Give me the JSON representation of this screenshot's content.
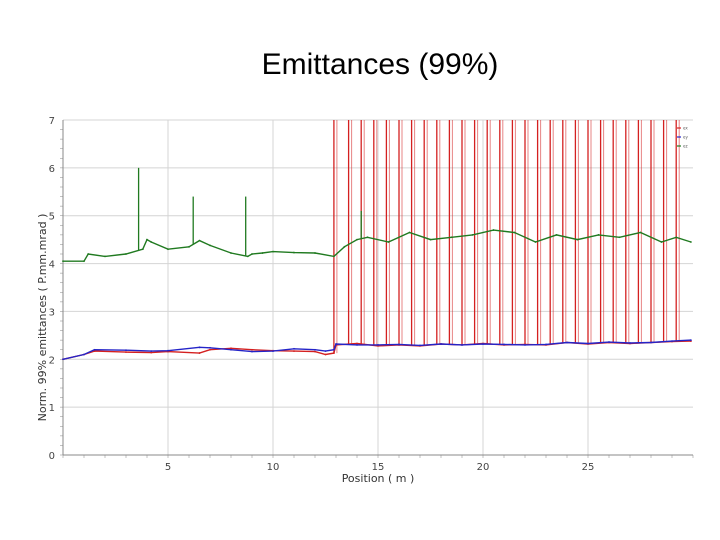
{
  "slide": {
    "title": "Emittances (99%)"
  },
  "chart_data": {
    "type": "line",
    "title": "Emittances (99%)",
    "xlabel": "Position ( m )",
    "ylabel": "Norm. 99% emittances ( P.mm.mrad )",
    "xlim": [
      0,
      30
    ],
    "ylim": [
      0,
      7
    ],
    "xticks": [
      5,
      10,
      15,
      20,
      25
    ],
    "yticks": [
      0,
      1,
      2,
      3,
      4,
      5,
      6,
      7
    ],
    "grid": true,
    "legend_position": "top-right",
    "legend": {
      "entries": [
        "ex",
        "ey",
        "ez"
      ]
    },
    "colors": {
      "ex": "#d42020",
      "ey": "#2424c8",
      "ez": "#207a20",
      "grid": "#d4d4d4"
    },
    "series": [
      {
        "name": "ex",
        "x": [
          0,
          1,
          1.5,
          3,
          4.2,
          5,
          6.5,
          7,
          8,
          9,
          10,
          11,
          12,
          12.5,
          12.9,
          13,
          14,
          15,
          16,
          17,
          18,
          19,
          20,
          21,
          22,
          23,
          24,
          25,
          26,
          27,
          28,
          29,
          29.9
        ],
        "values": [
          2.0,
          2.1,
          2.17,
          2.15,
          2.14,
          2.16,
          2.13,
          2.2,
          2.23,
          2.2,
          2.18,
          2.17,
          2.16,
          2.1,
          2.13,
          2.3,
          2.33,
          2.28,
          2.3,
          2.28,
          2.32,
          2.3,
          2.33,
          2.3,
          2.31,
          2.3,
          2.35,
          2.32,
          2.35,
          2.33,
          2.35,
          2.37,
          2.38
        ],
        "spikes": {
          "description": "periodic vertical excursions beyond plot top",
          "x": [
            12.9,
            13.6,
            14.2,
            14.8,
            15.4,
            16.0,
            16.6,
            17.2,
            17.8,
            18.4,
            19.0,
            19.6,
            20.2,
            20.8,
            21.4,
            22.0,
            22.6,
            23.2,
            23.8,
            24.4,
            25.0,
            25.6,
            26.2,
            26.8,
            27.4,
            28.0,
            28.6,
            29.2
          ],
          "peak": 7
        }
      },
      {
        "name": "ey",
        "x": [
          0,
          1,
          1.5,
          3,
          4.2,
          5,
          6.5,
          7,
          8,
          9,
          10,
          11,
          12,
          12.5,
          12.9,
          13,
          14,
          15,
          16,
          17,
          18,
          19,
          20,
          21,
          22,
          23,
          24,
          25,
          26,
          27,
          28,
          29,
          29.9
        ],
        "values": [
          2.0,
          2.1,
          2.2,
          2.19,
          2.17,
          2.18,
          2.25,
          2.24,
          2.2,
          2.16,
          2.17,
          2.22,
          2.2,
          2.17,
          2.2,
          2.32,
          2.3,
          2.3,
          2.31,
          2.29,
          2.32,
          2.3,
          2.32,
          2.31,
          2.3,
          2.31,
          2.35,
          2.33,
          2.36,
          2.34,
          2.35,
          2.38,
          2.4
        ]
      },
      {
        "name": "ez",
        "x": [
          0,
          1,
          1.2,
          2,
          3,
          3.8,
          4,
          4.2,
          5,
          6,
          6.5,
          7,
          8,
          8.8,
          9,
          9.5,
          10,
          11,
          12,
          12.9,
          13.4,
          14,
          14.5,
          15.5,
          16.5,
          17.5,
          18.5,
          19.5,
          20.5,
          21.5,
          22.5,
          23.5,
          24.5,
          25.5,
          26.5,
          27.5,
          28.5,
          29.2,
          29.9
        ],
        "values": [
          4.05,
          4.05,
          4.2,
          4.15,
          4.2,
          4.3,
          4.5,
          4.45,
          4.3,
          4.35,
          4.48,
          4.38,
          4.22,
          4.15,
          4.2,
          4.22,
          4.25,
          4.23,
          4.22,
          4.15,
          4.35,
          4.5,
          4.55,
          4.45,
          4.65,
          4.5,
          4.55,
          4.6,
          4.7,
          4.65,
          4.45,
          4.6,
          4.5,
          4.6,
          4.55,
          4.65,
          4.45,
          4.55,
          4.45
        ],
        "spikes": {
          "x": [
            3.6,
            6.2,
            8.7,
            14.2
          ],
          "peak": [
            6.0,
            5.4,
            5.4,
            5.1
          ]
        }
      }
    ]
  }
}
